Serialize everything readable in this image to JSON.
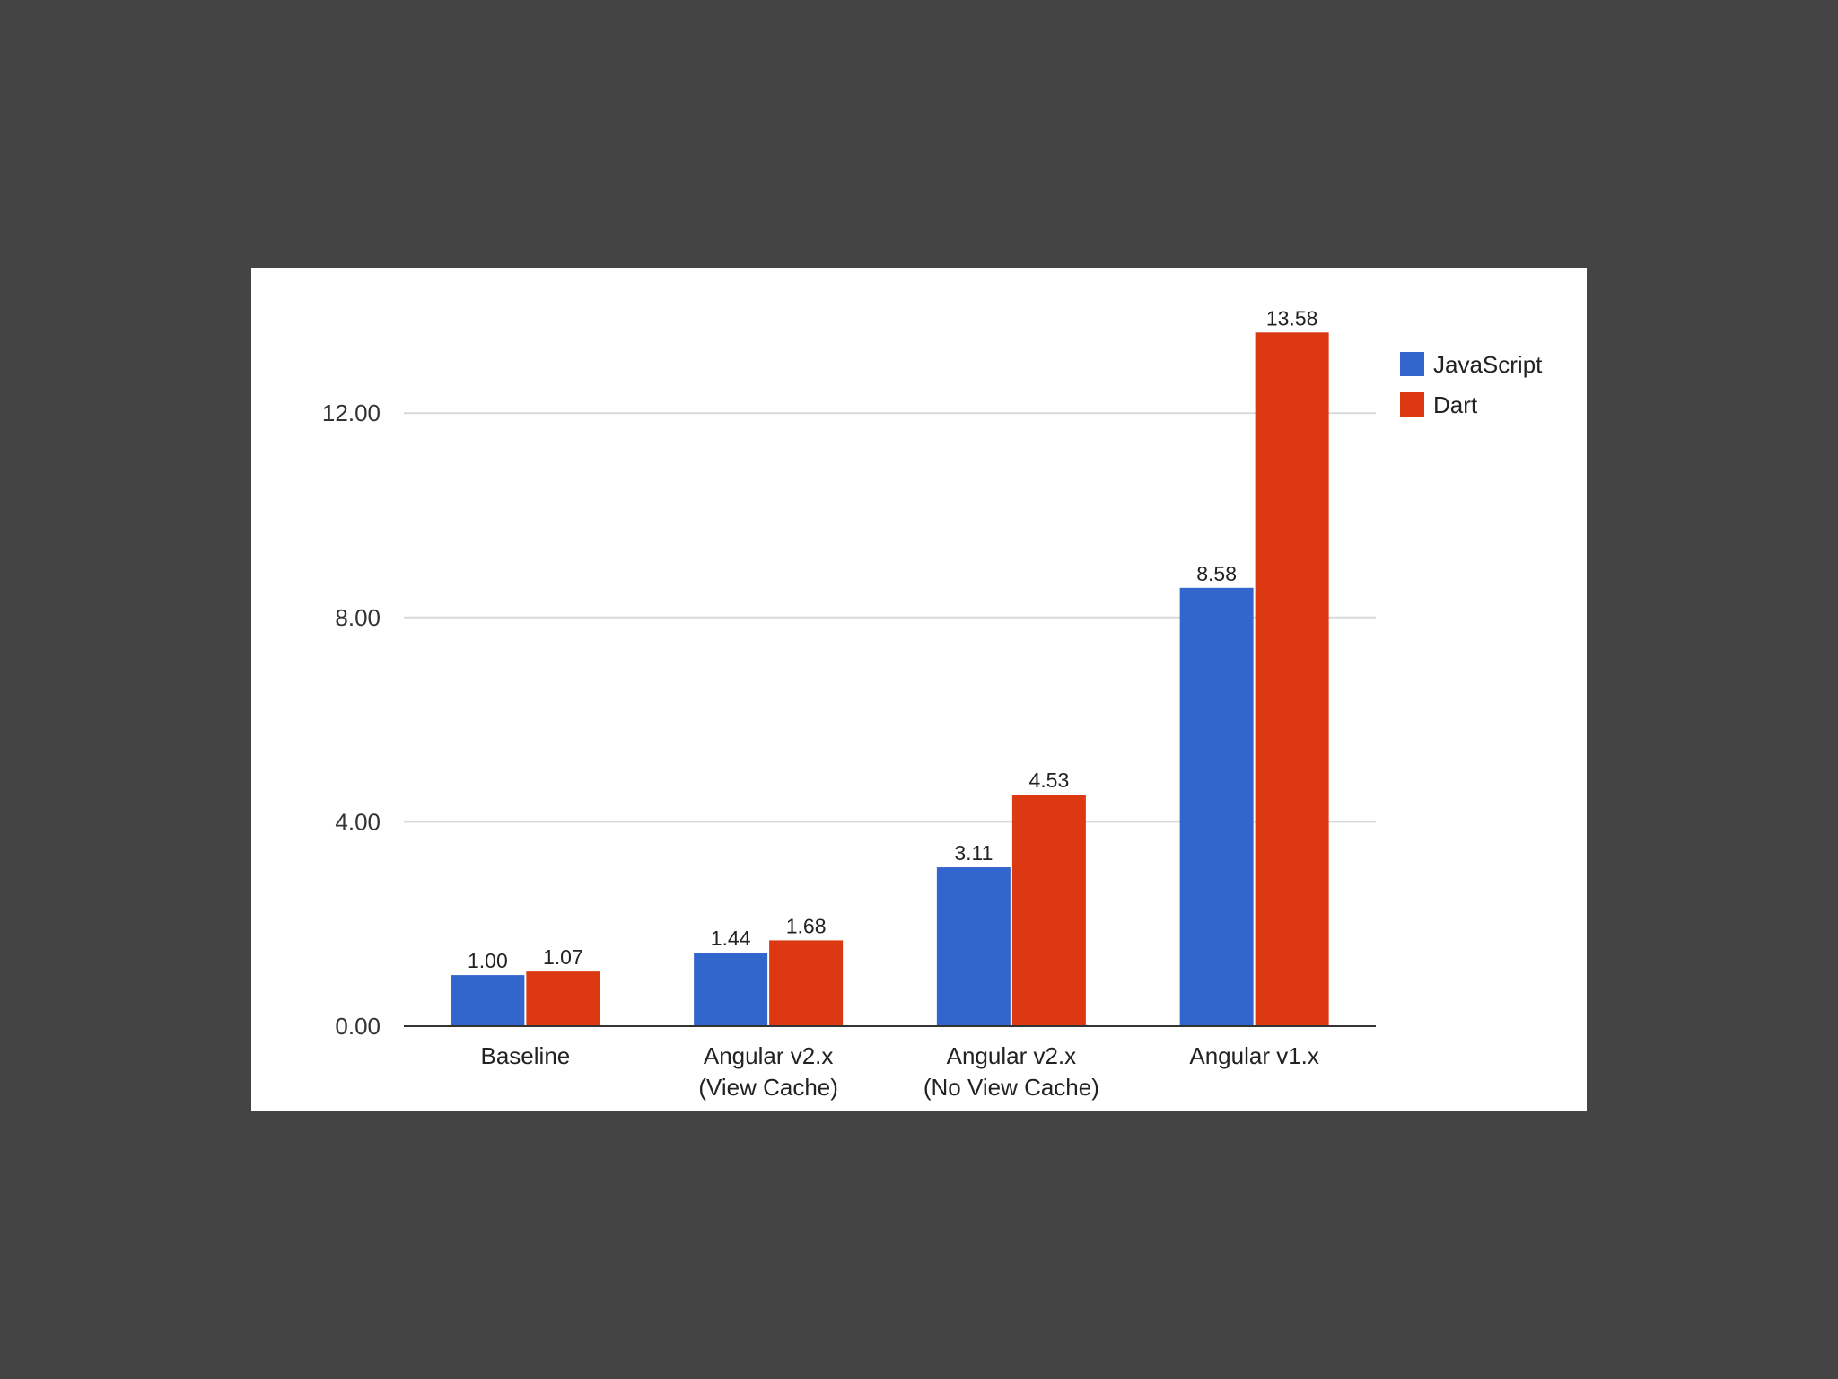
{
  "colors": {
    "page_background": "#454445",
    "panel_background": "#ffffff",
    "gridline": "#d9d9d9",
    "axis": "#333333"
  },
  "chart_data": {
    "type": "bar",
    "title": "",
    "xlabel": "",
    "ylabel": "",
    "categories": [
      [
        "Baseline"
      ],
      [
        "Angular v2.x",
        "(View Cache)"
      ],
      [
        "Angular v2.x",
        "(No View Cache)"
      ],
      [
        "Angular v1.x"
      ]
    ],
    "series": [
      {
        "name": "JavaScript",
        "color": "#3366cc",
        "values": [
          1.0,
          1.44,
          3.11,
          8.58
        ],
        "labels": [
          "1.00",
          "1.44",
          "3.11",
          "8.58"
        ]
      },
      {
        "name": "Dart",
        "color": "#dc3912",
        "values": [
          1.07,
          1.68,
          4.53,
          13.58
        ],
        "labels": [
          "1.07",
          "1.68",
          "4.53",
          "13.58"
        ]
      }
    ],
    "ylim": [
      0,
      14
    ],
    "yticks": [
      0,
      4,
      8,
      12
    ],
    "ytick_labels": [
      "0.00",
      "4.00",
      "8.00",
      "12.00"
    ],
    "grid": true,
    "legend": "right"
  }
}
